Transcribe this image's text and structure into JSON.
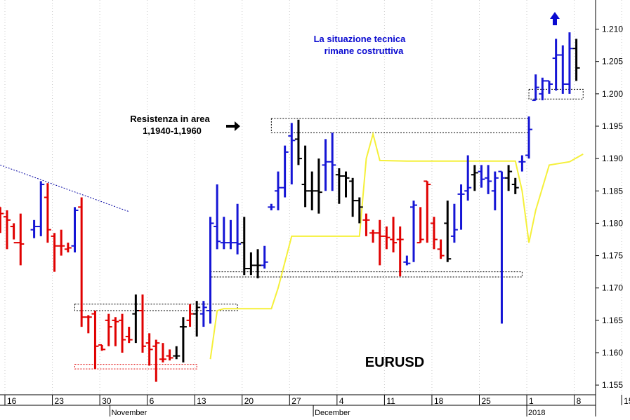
{
  "chart_data": {
    "type": "bar",
    "subtype": "ohlc",
    "title": "EURUSD",
    "y_axis_side": "right",
    "ylim": [
      1.1535,
      1.2145
    ],
    "y_ticks": [
      "1.155",
      "1.160",
      "1.165",
      "1.170",
      "1.175",
      "1.180",
      "1.185",
      "1.190",
      "1.195",
      "1.200",
      "1.205",
      "1.210"
    ],
    "x_ticks": [
      "16",
      "23",
      "30",
      "6",
      "13",
      "20",
      "27",
      "4",
      "11",
      "18",
      "25",
      "1",
      "8",
      "15"
    ],
    "x_tick_days": [
      0,
      7,
      14,
      21,
      28,
      35,
      42,
      49,
      56,
      63,
      70,
      77,
      84,
      91
    ],
    "month_labels": [
      {
        "label": "November",
        "day": 15.5
      },
      {
        "label": "December",
        "day": 45.5
      },
      {
        "label": "2018",
        "day": 77
      }
    ],
    "x_start_date": "2017-10-16",
    "colors": {
      "up": "#1515d5",
      "down": "#e00000",
      "neutral": "#000000",
      "ma": "#f5f03a",
      "trend": "#0000a0"
    },
    "bars": [
      {
        "d": -1,
        "o": 1.1825,
        "h": 1.1825,
        "l": 1.1785,
        "c": 1.1815,
        "color": "down"
      },
      {
        "d": 0,
        "o": 1.181,
        "h": 1.182,
        "l": 1.176,
        "c": 1.1805,
        "color": "down"
      },
      {
        "d": 1,
        "o": 1.1795,
        "h": 1.18,
        "l": 1.1775,
        "c": 1.177,
        "color": "down"
      },
      {
        "d": 2,
        "o": 1.177,
        "h": 1.1815,
        "l": 1.1735,
        "c": 1.1768,
        "color": "down"
      },
      {
        "d": 4,
        "o": 1.179,
        "h": 1.1805,
        "l": 1.1777,
        "c": 1.1795,
        "color": "up"
      },
      {
        "d": 5,
        "o": 1.1795,
        "h": 1.1865,
        "l": 1.178,
        "c": 1.186,
        "color": "up"
      },
      {
        "d": 6,
        "o": 1.184,
        "h": 1.1862,
        "l": 1.177,
        "c": 1.179,
        "color": "down"
      },
      {
        "d": 7,
        "o": 1.178,
        "h": 1.1785,
        "l": 1.1725,
        "c": 1.1765,
        "color": "down"
      },
      {
        "d": 8,
        "o": 1.1765,
        "h": 1.179,
        "l": 1.175,
        "c": 1.1765,
        "color": "down"
      },
      {
        "d": 9,
        "o": 1.176,
        "h": 1.177,
        "l": 1.1755,
        "c": 1.1762,
        "color": "down"
      },
      {
        "d": 10,
        "o": 1.1765,
        "h": 1.1825,
        "l": 1.1755,
        "c": 1.182,
        "color": "up"
      },
      {
        "d": 11,
        "o": 1.1825,
        "h": 1.184,
        "l": 1.164,
        "c": 1.1655,
        "color": "down"
      },
      {
        "d": 12,
        "o": 1.1655,
        "h": 1.1658,
        "l": 1.163,
        "c": 1.1655,
        "color": "down"
      },
      {
        "d": 13,
        "o": 1.166,
        "h": 1.1665,
        "l": 1.1575,
        "c": 1.161,
        "color": "down"
      },
      {
        "d": 14,
        "o": 1.1612,
        "h": 1.1612,
        "l": 1.1603,
        "c": 1.1605,
        "color": "down"
      },
      {
        "d": 15,
        "o": 1.165,
        "h": 1.166,
        "l": 1.161,
        "c": 1.164,
        "color": "down"
      },
      {
        "d": 16,
        "o": 1.165,
        "h": 1.1655,
        "l": 1.161,
        "c": 1.1648,
        "color": "down"
      },
      {
        "d": 17,
        "o": 1.165,
        "h": 1.166,
        "l": 1.16,
        "c": 1.162,
        "color": "down"
      },
      {
        "d": 18,
        "o": 1.1625,
        "h": 1.164,
        "l": 1.1615,
        "c": 1.162,
        "color": "down"
      },
      {
        "d": 19,
        "o": 1.166,
        "h": 1.169,
        "l": 1.1615,
        "c": 1.1665,
        "color": "neutral"
      },
      {
        "d": 20,
        "o": 1.1665,
        "h": 1.169,
        "l": 1.16,
        "c": 1.161,
        "color": "down"
      },
      {
        "d": 21,
        "o": 1.1615,
        "h": 1.163,
        "l": 1.158,
        "c": 1.1605,
        "color": "down"
      },
      {
        "d": 22,
        "o": 1.161,
        "h": 1.162,
        "l": 1.1555,
        "c": 1.1615,
        "color": "down"
      },
      {
        "d": 23,
        "o": 1.159,
        "h": 1.1615,
        "l": 1.1585,
        "c": 1.159,
        "color": "down"
      },
      {
        "d": 24,
        "o": 1.1595,
        "h": 1.1605,
        "l": 1.1588,
        "c": 1.1592,
        "color": "down"
      },
      {
        "d": 25,
        "o": 1.1595,
        "h": 1.161,
        "l": 1.159,
        "c": 1.1595,
        "color": "neutral"
      },
      {
        "d": 26,
        "o": 1.164,
        "h": 1.1655,
        "l": 1.1585,
        "c": 1.164,
        "color": "neutral"
      },
      {
        "d": 27,
        "o": 1.165,
        "h": 1.1675,
        "l": 1.164,
        "c": 1.166,
        "color": "down"
      },
      {
        "d": 28,
        "o": 1.166,
        "h": 1.168,
        "l": 1.1625,
        "c": 1.167,
        "color": "neutral"
      },
      {
        "d": 29,
        "o": 1.166,
        "h": 1.168,
        "l": 1.164,
        "c": 1.167,
        "color": "up"
      },
      {
        "d": 30,
        "o": 1.1665,
        "h": 1.181,
        "l": 1.1645,
        "c": 1.18,
        "color": "up"
      },
      {
        "d": 31,
        "o": 1.1795,
        "h": 1.186,
        "l": 1.176,
        "c": 1.1772,
        "color": "up"
      },
      {
        "d": 32,
        "o": 1.177,
        "h": 1.181,
        "l": 1.176,
        "c": 1.177,
        "color": "up"
      },
      {
        "d": 33,
        "o": 1.177,
        "h": 1.1805,
        "l": 1.176,
        "c": 1.177,
        "color": "up"
      },
      {
        "d": 34,
        "o": 1.177,
        "h": 1.183,
        "l": 1.1752,
        "c": 1.1768,
        "color": "up"
      },
      {
        "d": 35,
        "o": 1.177,
        "h": 1.181,
        "l": 1.172,
        "c": 1.173,
        "color": "neutral"
      },
      {
        "d": 36,
        "o": 1.173,
        "h": 1.1755,
        "l": 1.172,
        "c": 1.1735,
        "color": "neutral"
      },
      {
        "d": 37,
        "o": 1.1735,
        "h": 1.176,
        "l": 1.1715,
        "c": 1.1735,
        "color": "neutral"
      },
      {
        "d": 38,
        "o": 1.1735,
        "h": 1.1765,
        "l": 1.173,
        "c": 1.174,
        "color": "up"
      },
      {
        "d": 39,
        "o": 1.1825,
        "h": 1.183,
        "l": 1.182,
        "c": 1.1825,
        "color": "up"
      },
      {
        "d": 40,
        "o": 1.185,
        "h": 1.188,
        "l": 1.182,
        "c": 1.1855,
        "color": "up"
      },
      {
        "d": 41,
        "o": 1.1855,
        "h": 1.192,
        "l": 1.184,
        "c": 1.191,
        "color": "up"
      },
      {
        "d": 42,
        "o": 1.1935,
        "h": 1.1955,
        "l": 1.186,
        "c": 1.1928,
        "color": "up"
      },
      {
        "d": 43,
        "o": 1.193,
        "h": 1.196,
        "l": 1.189,
        "c": 1.19,
        "color": "neutral"
      },
      {
        "d": 44,
        "o": 1.186,
        "h": 1.192,
        "l": 1.1825,
        "c": 1.185,
        "color": "neutral"
      },
      {
        "d": 45,
        "o": 1.185,
        "h": 1.188,
        "l": 1.182,
        "c": 1.185,
        "color": "neutral"
      },
      {
        "d": 46,
        "o": 1.185,
        "h": 1.19,
        "l": 1.1815,
        "c": 1.1848,
        "color": "neutral"
      },
      {
        "d": 47,
        "o": 1.189,
        "h": 1.193,
        "l": 1.185,
        "c": 1.1895,
        "color": "up"
      },
      {
        "d": 48,
        "o": 1.1895,
        "h": 1.194,
        "l": 1.185,
        "c": 1.189,
        "color": "up"
      },
      {
        "d": 49,
        "o": 1.1875,
        "h": 1.1885,
        "l": 1.183,
        "c": 1.1873,
        "color": "neutral"
      },
      {
        "d": 50,
        "o": 1.1873,
        "h": 1.188,
        "l": 1.184,
        "c": 1.187,
        "color": "neutral"
      },
      {
        "d": 51,
        "o": 1.1865,
        "h": 1.187,
        "l": 1.181,
        "c": 1.1835,
        "color": "neutral"
      },
      {
        "d": 52,
        "o": 1.1835,
        "h": 1.184,
        "l": 1.18,
        "c": 1.1825,
        "color": "neutral"
      },
      {
        "d": 53,
        "o": 1.1805,
        "h": 1.1815,
        "l": 1.178,
        "c": 1.1805,
        "color": "down"
      },
      {
        "d": 54,
        "o": 1.1785,
        "h": 1.179,
        "l": 1.177,
        "c": 1.1785,
        "color": "down"
      },
      {
        "d": 55,
        "o": 1.1785,
        "h": 1.1805,
        "l": 1.1735,
        "c": 1.178,
        "color": "down"
      },
      {
        "d": 56,
        "o": 1.178,
        "h": 1.1795,
        "l": 1.176,
        "c": 1.1778,
        "color": "down"
      },
      {
        "d": 57,
        "o": 1.1775,
        "h": 1.181,
        "l": 1.1755,
        "c": 1.177,
        "color": "down"
      },
      {
        "d": 58,
        "o": 1.1775,
        "h": 1.1795,
        "l": 1.1718,
        "c": 1.1775,
        "color": "down"
      },
      {
        "d": 59,
        "o": 1.174,
        "h": 1.175,
        "l": 1.1735,
        "c": 1.1738,
        "color": "up"
      },
      {
        "d": 60,
        "o": 1.1825,
        "h": 1.1835,
        "l": 1.174,
        "c": 1.1828,
        "color": "up"
      },
      {
        "d": 61,
        "o": 1.177,
        "h": 1.1825,
        "l": 1.177,
        "c": 1.1775,
        "color": "down"
      },
      {
        "d": 62,
        "o": 1.1865,
        "h": 1.1865,
        "l": 1.177,
        "c": 1.186,
        "color": "down"
      },
      {
        "d": 63,
        "o": 1.18,
        "h": 1.181,
        "l": 1.176,
        "c": 1.1775,
        "color": "down"
      },
      {
        "d": 64,
        "o": 1.176,
        "h": 1.1775,
        "l": 1.1745,
        "c": 1.175,
        "color": "down"
      },
      {
        "d": 65,
        "o": 1.18,
        "h": 1.1835,
        "l": 1.174,
        "c": 1.1745,
        "color": "neutral"
      },
      {
        "d": 66,
        "o": 1.178,
        "h": 1.183,
        "l": 1.177,
        "c": 1.179,
        "color": "up"
      },
      {
        "d": 67,
        "o": 1.1845,
        "h": 1.186,
        "l": 1.179,
        "c": 1.1845,
        "color": "up"
      },
      {
        "d": 68,
        "o": 1.185,
        "h": 1.1905,
        "l": 1.1835,
        "c": 1.1855,
        "color": "up"
      },
      {
        "d": 69,
        "o": 1.1875,
        "h": 1.189,
        "l": 1.185,
        "c": 1.1878,
        "color": "neutral"
      },
      {
        "d": 70,
        "o": 1.188,
        "h": 1.189,
        "l": 1.1855,
        "c": 1.1868,
        "color": "up"
      },
      {
        "d": 71,
        "o": 1.187,
        "h": 1.189,
        "l": 1.1845,
        "c": 1.1865,
        "color": "up"
      },
      {
        "d": 72,
        "o": 1.185,
        "h": 1.188,
        "l": 1.182,
        "c": 1.187,
        "color": "up"
      },
      {
        "d": 73,
        "o": 1.188,
        "h": 1.188,
        "l": 1.1645,
        "c": 1.187,
        "color": "up"
      },
      {
        "d": 74,
        "o": 1.187,
        "h": 1.189,
        "l": 1.185,
        "c": 1.188,
        "color": "neutral"
      },
      {
        "d": 75,
        "o": 1.186,
        "h": 1.187,
        "l": 1.1845,
        "c": 1.1855,
        "color": "neutral"
      },
      {
        "d": 76,
        "o": 1.1895,
        "h": 1.1905,
        "l": 1.188,
        "c": 1.1895,
        "color": "up"
      },
      {
        "d": 77,
        "o": 1.1905,
        "h": 1.1965,
        "l": 1.19,
        "c": 1.1945,
        "color": "up"
      },
      {
        "d": 78,
        "o": 1.199,
        "h": 1.203,
        "l": 1.199,
        "c": 1.201,
        "color": "up"
      },
      {
        "d": 79,
        "o": 1.2,
        "h": 1.2025,
        "l": 1.199,
        "c": 1.202,
        "color": "up"
      },
      {
        "d": 80,
        "o": 1.202,
        "h": 1.202,
        "l": 1.2,
        "c": 1.2015,
        "color": "up"
      },
      {
        "d": 81,
        "o": 1.2055,
        "h": 1.2085,
        "l": 1.2005,
        "c": 1.206,
        "color": "up"
      },
      {
        "d": 82,
        "o": 1.206,
        "h": 1.2075,
        "l": 1.2,
        "c": 1.2015,
        "color": "up"
      },
      {
        "d": 83,
        "o": 1.2015,
        "h": 1.2095,
        "l": 1.2,
        "c": 1.207,
        "color": "up"
      },
      {
        "d": 84,
        "o": 1.207,
        "h": 1.2085,
        "l": 1.202,
        "c": 1.204,
        "color": "neutral"
      }
    ],
    "ma_line": [
      {
        "d": 30,
        "v": 1.159
      },
      {
        "d": 31,
        "v": 1.1665
      },
      {
        "d": 32,
        "v": 1.1668
      },
      {
        "d": 39,
        "v": 1.1668
      },
      {
        "d": 40,
        "v": 1.17
      },
      {
        "d": 42,
        "v": 1.178
      },
      {
        "d": 52,
        "v": 1.178
      },
      {
        "d": 53,
        "v": 1.19
      },
      {
        "d": 54,
        "v": 1.1938
      },
      {
        "d": 55,
        "v": 1.1897
      },
      {
        "d": 59,
        "v": 1.1896
      },
      {
        "d": 75,
        "v": 1.1896
      },
      {
        "d": 76,
        "v": 1.185
      },
      {
        "d": 77,
        "v": 1.177
      },
      {
        "d": 78,
        "v": 1.182
      },
      {
        "d": 80,
        "v": 1.189
      },
      {
        "d": 83,
        "v": 1.1895
      },
      {
        "d": 85,
        "v": 1.1907
      }
    ],
    "trendline": [
      {
        "d": -1,
        "v": 1.189
      },
      {
        "d": 18,
        "v": 1.1818
      }
    ],
    "zones": [
      {
        "name": "resistance-zone-1194-1196",
        "d1": 39,
        "d2": 77,
        "v1": 1.194,
        "v2": 1.1962,
        "color": "#000000"
      },
      {
        "name": "support-zone-upper",
        "d1": 77,
        "d2": 85,
        "v1": 1.1992,
        "v2": 1.2007,
        "color": "#000000"
      },
      {
        "name": "support-zone-1172",
        "d1": 30,
        "d2": 76,
        "v1": 1.1717,
        "v2": 1.1725,
        "color": "#000000"
      },
      {
        "name": "support-zone-1167",
        "d1": 10,
        "d2": 34,
        "v1": 1.1665,
        "v2": 1.1675,
        "color": "#000000"
      },
      {
        "name": "low-zone-1158",
        "d1": 10,
        "d2": 28,
        "v1": 1.1575,
        "v2": 1.1582,
        "color": "#e00000"
      }
    ]
  },
  "annotations": {
    "resistance_line1": "Resistenza in area",
    "resistance_line2": "1,1940-1,1960",
    "technical_line1": "La situazione tecnica",
    "technical_line2": "rimane costruttiva",
    "symbol": "EURUSD"
  }
}
